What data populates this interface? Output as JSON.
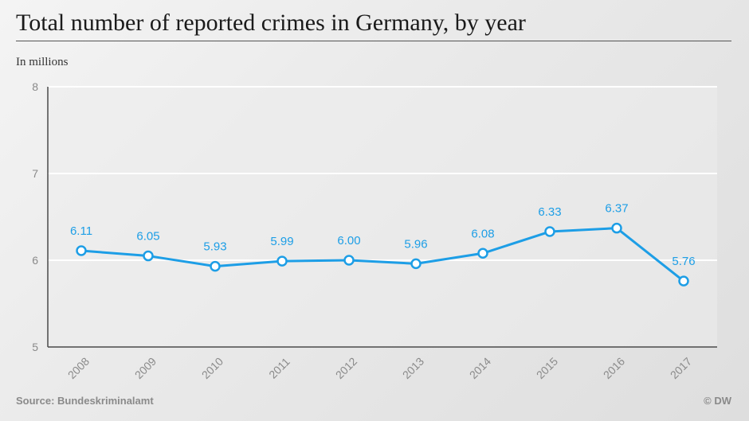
{
  "header": {
    "title": "Total number of reported crimes in Germany, by year",
    "unit_label": "In millions"
  },
  "footer": {
    "source": "Source: Bundeskriminalamt",
    "credit": "© DW"
  },
  "colors": {
    "series": "#1d9ee6",
    "grid": "#ffffff",
    "axis": "#4a4a4a",
    "tick_text": "#8a8a8a",
    "plot_bg": "#ececec"
  },
  "chart_data": {
    "type": "line",
    "title": "Total number of reported crimes in Germany, by year",
    "ylabel": "In millions",
    "xlabel": "",
    "categories": [
      "2008",
      "2009",
      "2010",
      "2011",
      "2012",
      "2013",
      "2014",
      "2015",
      "2016",
      "2017"
    ],
    "series": [
      {
        "values": [
          6.11,
          6.05,
          5.93,
          5.99,
          6.0,
          5.96,
          6.08,
          6.33,
          6.37,
          5.76
        ],
        "labels": [
          "6.11",
          "6.05",
          "5.93",
          "5.99",
          "6.00",
          "5.96",
          "6.08",
          "6.33",
          "6.37",
          "5.76"
        ]
      }
    ],
    "ylim": [
      5,
      8
    ],
    "yticks": [
      "5",
      "6",
      "7",
      "8"
    ],
    "grid": true,
    "legend": "none"
  }
}
